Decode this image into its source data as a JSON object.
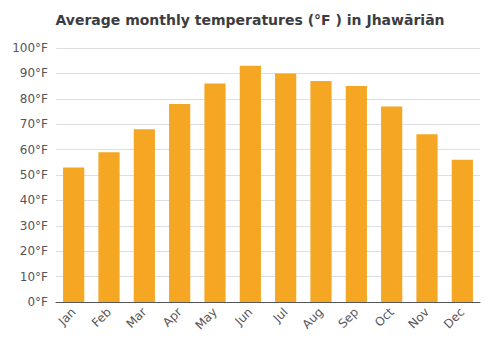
{
  "chart_data": {
    "type": "bar",
    "title": "Average monthly temperatures (°F ) in Jhawāriān",
    "categories": [
      "Jan",
      "Feb",
      "Mar",
      "Apr",
      "May",
      "Jun",
      "Jul",
      "Aug",
      "Sep",
      "Oct",
      "Nov",
      "Dec"
    ],
    "values": [
      53,
      59,
      68,
      78,
      86,
      93,
      90,
      87,
      85,
      77,
      66,
      56
    ],
    "color": "#F5A623",
    "ylim": [
      0,
      100
    ],
    "yticks": [
      {
        "value": 0,
        "label": "0°F"
      },
      {
        "value": 10,
        "label": "10°F"
      },
      {
        "value": 20,
        "label": "20°F"
      },
      {
        "value": 30,
        "label": "30°F"
      },
      {
        "value": 40,
        "label": "40°F"
      },
      {
        "value": 50,
        "label": "50°F"
      },
      {
        "value": 60,
        "label": "60°F"
      },
      {
        "value": 70,
        "label": "70°F"
      },
      {
        "value": 80,
        "label": "80°F"
      },
      {
        "value": 90,
        "label": "90°F"
      },
      {
        "value": 100,
        "label": "100°F"
      }
    ],
    "grid": true
  }
}
